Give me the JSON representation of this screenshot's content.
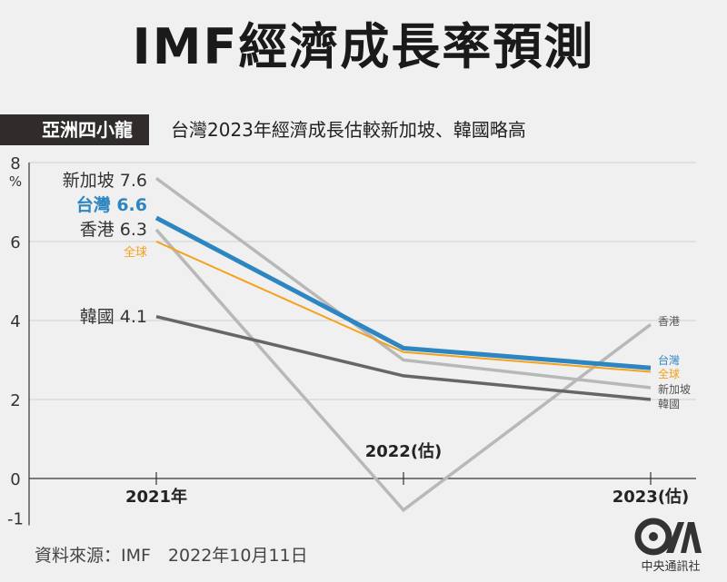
{
  "title": "IMF經濟成長率預測",
  "tag": "亞洲四小龍",
  "subtitle": "台灣2023年經濟成長估較新加坡、韓國略高",
  "source": "資料來源：IMF　2022年10月11日",
  "logo_text": "中央通訊社",
  "colors": {
    "taiwan": "#2e86c1",
    "global": "#f5a11b",
    "singapore": "#b8b8b8",
    "hongkong": "#b8b8b8",
    "korea": "#666666",
    "axis": "#333333"
  },
  "chart_data": {
    "type": "line",
    "x": [
      "2021年",
      "2022(估)",
      "2023(估)"
    ],
    "ylabel": "%",
    "ylim": [
      -1,
      8
    ],
    "yticks": [
      -1,
      0,
      2,
      4,
      6,
      8
    ],
    "grid": true,
    "series": [
      {
        "key": "singapore",
        "name": "新加坡",
        "start_label": "新加坡 7.6",
        "end_label": "新加坡",
        "values": [
          7.6,
          3.0,
          2.3
        ]
      },
      {
        "key": "hongkong",
        "name": "香港",
        "start_label": "香港 6.3",
        "end_label": "香港",
        "values": [
          6.3,
          -0.8,
          3.9
        ]
      },
      {
        "key": "korea",
        "name": "韓國",
        "start_label": "韓國 4.1",
        "end_label": "韓國",
        "values": [
          4.1,
          2.6,
          2.0
        ]
      },
      {
        "key": "global",
        "name": "全球",
        "start_label": "全球",
        "end_label": "全球",
        "values": [
          6.0,
          3.2,
          2.7
        ]
      },
      {
        "key": "taiwan",
        "name": "台灣",
        "start_label": "台灣 6.6",
        "end_label": "台灣",
        "values": [
          6.6,
          3.3,
          2.8
        ]
      }
    ]
  }
}
